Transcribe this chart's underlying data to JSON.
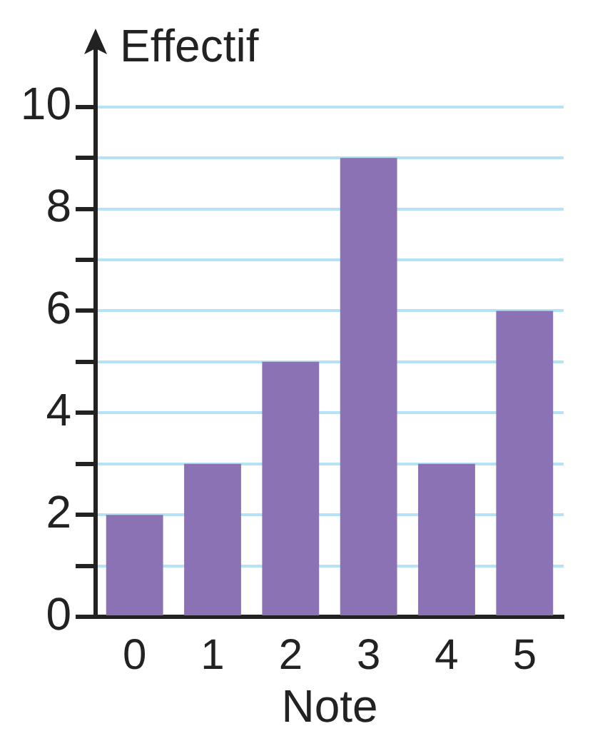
{
  "chart_data": {
    "type": "bar",
    "xlabel": "Note",
    "ylabel": "Effectif",
    "categories": [
      "0",
      "1",
      "2",
      "3",
      "4",
      "5"
    ],
    "values": [
      2,
      3,
      5,
      9,
      3,
      6
    ],
    "color": "#8a72b4",
    "ylim": [
      0,
      11.2
    ],
    "yticks": [
      0,
      {
        "value": 1,
        "label": null
      },
      2,
      {
        "value": 3,
        "label": null
      },
      4,
      {
        "value": 5,
        "label": null
      },
      6,
      {
        "value": 7,
        "label": null
      },
      8,
      {
        "value": 9,
        "label": null
      },
      10
    ],
    "grid": "y"
  }
}
